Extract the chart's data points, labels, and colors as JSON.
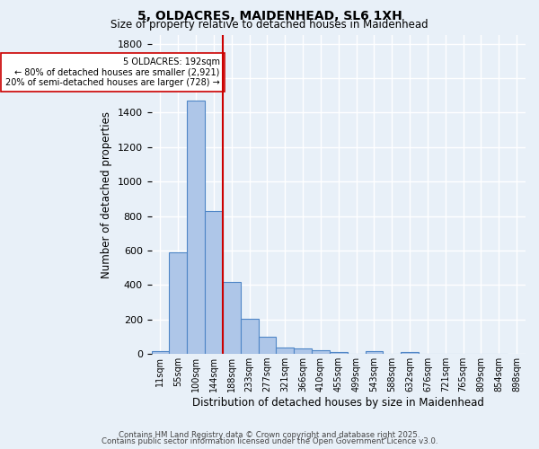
{
  "title": "5, OLDACRES, MAIDENHEAD, SL6 1XH",
  "subtitle": "Size of property relative to detached houses in Maidenhead",
  "xlabel": "Distribution of detached houses by size in Maidenhead",
  "ylabel": "Number of detached properties",
  "bar_values": [
    15,
    590,
    1470,
    830,
    420,
    205,
    100,
    38,
    30,
    20,
    10,
    0,
    15,
    0,
    10,
    0,
    0,
    0,
    0,
    0
  ],
  "bin_labels": [
    "11sqm",
    "55sqm",
    "100sqm",
    "144sqm",
    "188sqm",
    "233sqm",
    "277sqm",
    "321sqm",
    "366sqm",
    "410sqm",
    "455sqm",
    "499sqm",
    "543sqm",
    "588sqm",
    "632sqm",
    "676sqm",
    "721sqm",
    "765sqm",
    "809sqm",
    "854sqm"
  ],
  "bar_color": "#aec6e8",
  "bar_edge_color": "#4f86c6",
  "red_line_bin_index": 4,
  "red_line_color": "#cc0000",
  "annotation_text": "5 OLDACRES: 192sqm\n← 80% of detached houses are smaller (2,921)\n20% of semi-detached houses are larger (728) →",
  "annotation_box_color": "#ffffff",
  "annotation_box_edge": "#cc0000",
  "ylim": [
    0,
    1850
  ],
  "yticks": [
    0,
    200,
    400,
    600,
    800,
    1000,
    1200,
    1400,
    1600,
    1800
  ],
  "footnote1": "Contains HM Land Registry data © Crown copyright and database right 2025.",
  "footnote2": "Contains public sector information licensed under the Open Government Licence v3.0.",
  "bg_color": "#e8f0f8",
  "grid_color": "#ffffff",
  "extra_tick_label": "898sqm"
}
